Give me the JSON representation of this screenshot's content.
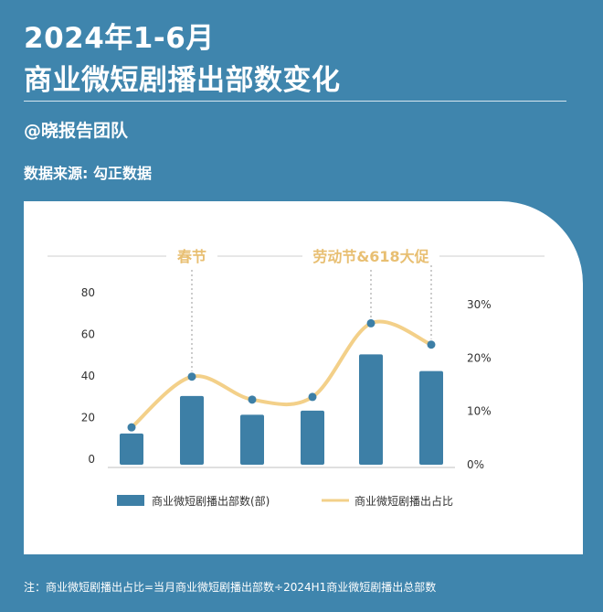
{
  "header": {
    "title_line1": "2024年1-6月",
    "title_line2": "商业微短剧播出部数变化",
    "author": "@晓报告团队",
    "source": "数据来源: 勾正数据"
  },
  "footnote": "注：商业微短剧播出占比=当月商业微短剧播出部数÷2024H1商业微短剧播出总部数",
  "colors": {
    "background": "#3f85ad",
    "bar": "#3d7fa6",
    "line": "#f3d089",
    "marker": "#3d7fa6",
    "annotation": "#e8bf72",
    "card": "#ffffff"
  },
  "chart_data": {
    "type": "bar",
    "categories": [
      "",
      "",
      "",
      "",
      "",
      ""
    ],
    "series": [
      {
        "name": "商业微短剧播出部数(部)",
        "type": "bar",
        "axis": "left",
        "values": [
          15,
          33,
          24,
          26,
          53,
          45
        ]
      },
      {
        "name": "商业微短剧播出占比",
        "type": "line",
        "axis": "right",
        "values": [
          7,
          16.5,
          12.2,
          12.7,
          26.5,
          22.5
        ]
      }
    ],
    "y_left": {
      "ticks": [
        0,
        20,
        40,
        60,
        80
      ],
      "ylim": [
        0,
        80
      ]
    },
    "y_right": {
      "ticks": [
        "0%",
        "10%",
        "20%",
        "30%"
      ],
      "ylim": [
        0,
        30
      ]
    },
    "annotations": [
      {
        "text": "春节",
        "category_index": 1
      },
      {
        "text": "劳动节&618大促",
        "category_index": 4
      }
    ],
    "legend_position": "bottom",
    "grid": false
  }
}
